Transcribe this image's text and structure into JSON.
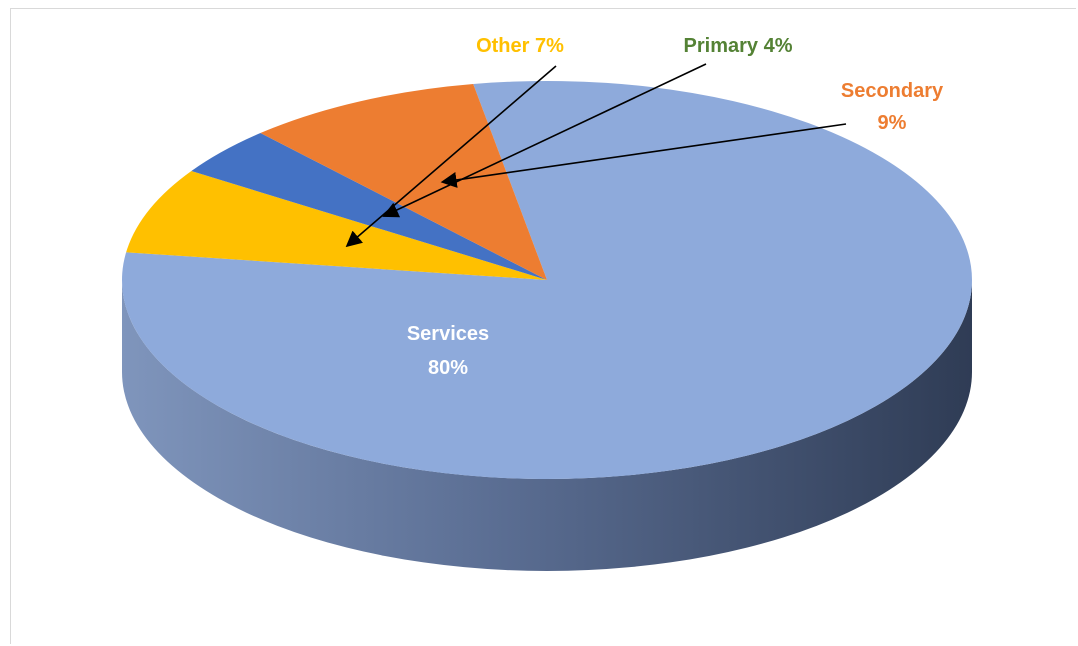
{
  "chart_data": {
    "type": "pie",
    "title": "",
    "three_d": true,
    "categories": [
      "Services",
      "Other",
      "Primary",
      "Secondary"
    ],
    "values": [
      80,
      7,
      4,
      9
    ],
    "colors": {
      "Services": "#8eaadb",
      "Other": "#ffc000",
      "Primary": "#4472c4",
      "Secondary": "#ed7d31"
    },
    "label_colors": {
      "Services": "#ffffff",
      "Other": "#ffc000",
      "Primary": "#548235",
      "Secondary": "#ed7d31"
    },
    "labels": {
      "Services": [
        "Services",
        "80%"
      ],
      "Other": [
        "Other 7%"
      ],
      "Primary": [
        "Primary 4%"
      ],
      "Secondary": [
        "Secondary",
        "9%"
      ]
    },
    "legend": "none"
  }
}
